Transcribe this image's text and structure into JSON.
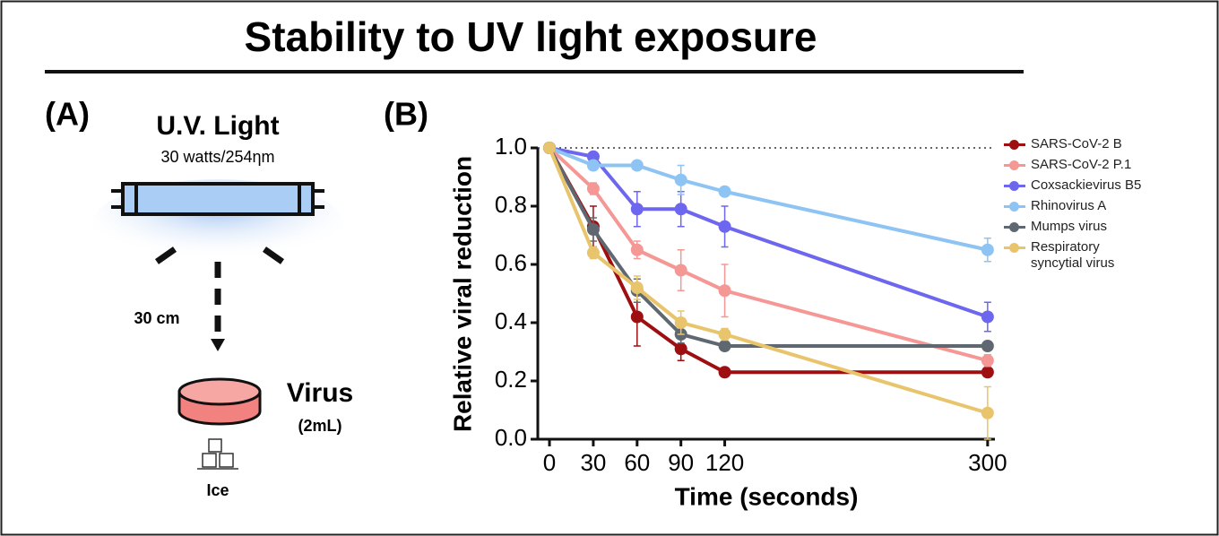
{
  "chart_data": {
    "type": "line",
    "title": "Stability to UV light exposure",
    "x_label": "Time (seconds)",
    "y_label": "Relative viral reduction",
    "x": [
      0,
      30,
      60,
      90,
      120,
      300
    ],
    "xlim": [
      -8,
      305
    ],
    "xticks": [
      0,
      30,
      60,
      90,
      120,
      300
    ],
    "ylim": [
      0,
      1
    ],
    "yticks": [
      {
        "value": 0,
        "label": "0.0"
      },
      0.2,
      0.4,
      0.6,
      0.8,
      {
        "value": 1,
        "label": "1.0"
      }
    ],
    "reference_line": 1,
    "series": [
      {
        "name": "SARS-CoV-2 B",
        "color": "#9e0f12",
        "values": [
          1,
          0.73,
          0.42,
          0.31,
          0.23,
          0.23
        ],
        "errors": [
          0,
          0.07,
          0.1,
          0.04,
          0,
          0
        ]
      },
      {
        "name": "SARS-CoV-2 P.1",
        "color": "#f59795",
        "values": [
          1,
          0.86,
          0.65,
          0.58,
          0.51,
          0.27
        ],
        "errors": [
          0,
          0.02,
          0.03,
          0.07,
          0.09,
          0.02
        ]
      },
      {
        "name": "Coxsackievirus B5",
        "color": "#6d66ef",
        "values": [
          1,
          0.97,
          0.79,
          0.79,
          0.73,
          0.42
        ],
        "errors": [
          0,
          0,
          0.06,
          0.06,
          0.07,
          0.05
        ]
      },
      {
        "name": "Rhinovirus A",
        "color": "#8ec4f3",
        "values": [
          1,
          0.94,
          0.94,
          0.89,
          0.85,
          0.65
        ],
        "errors": [
          0,
          0.01,
          0,
          0.05,
          0.01,
          0.04
        ]
      },
      {
        "name": "Mumps virus",
        "color": "#5f6870",
        "values": [
          1,
          0.72,
          0.51,
          0.36,
          0.32,
          0.32
        ],
        "errors": [
          0,
          0.04,
          0.04,
          0.03,
          0.01,
          0
        ]
      },
      {
        "name": "Respiratory syncytial virus",
        "color": "#e8c56c",
        "values": [
          1,
          0.64,
          0.52,
          0.4,
          0.36,
          0.09
        ],
        "errors": [
          0,
          0.02,
          0.04,
          0.04,
          0.02,
          0.09
        ]
      }
    ]
  },
  "panel_a": {
    "label": "(A)",
    "light": "U.V. Light",
    "spec": "30 watts/254ηm",
    "distance": "30 cm",
    "sample": "Virus",
    "volume": "(2mL)",
    "ice": "Ice"
  },
  "panel_b_label": "(B)"
}
